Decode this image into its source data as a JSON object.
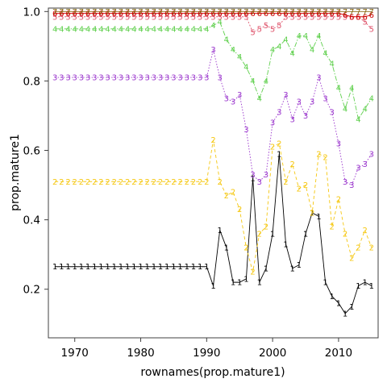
{
  "chart_data": {
    "type": "line",
    "title": "",
    "xlabel": "rownames(prop.mature1)",
    "ylabel": "prop.mature1",
    "xlim": [
      1966,
      2016
    ],
    "ylim": [
      0.06,
      1.01
    ],
    "xticks": [
      1970,
      1980,
      1990,
      2000,
      2010
    ],
    "yticks": [
      0.2,
      0.4,
      0.6,
      0.8,
      1.0
    ],
    "ytick_labels": [
      "0.2",
      "0.4",
      "0.6",
      "0.8",
      "1.0"
    ],
    "grid": false,
    "legend": "none",
    "x": [
      1967,
      1968,
      1969,
      1970,
      1971,
      1972,
      1973,
      1974,
      1975,
      1976,
      1977,
      1978,
      1979,
      1980,
      1981,
      1982,
      1983,
      1984,
      1985,
      1986,
      1987,
      1988,
      1989,
      1990,
      1991,
      1992,
      1993,
      1994,
      1995,
      1996,
      1997,
      1998,
      1999,
      2000,
      2001,
      2002,
      2003,
      2004,
      2005,
      2006,
      2007,
      2008,
      2009,
      2010,
      2011,
      2012,
      2013,
      2014,
      2015
    ],
    "series": [
      {
        "marker": "1",
        "color": "#000000",
        "dash": "",
        "values": [
          0.265,
          0.265,
          0.265,
          0.265,
          0.265,
          0.265,
          0.265,
          0.265,
          0.265,
          0.265,
          0.265,
          0.265,
          0.265,
          0.265,
          0.265,
          0.265,
          0.265,
          0.265,
          0.265,
          0.265,
          0.265,
          0.265,
          0.265,
          0.265,
          0.21,
          0.37,
          0.32,
          0.22,
          0.22,
          0.23,
          0.52,
          0.22,
          0.26,
          0.36,
          0.59,
          0.33,
          0.26,
          0.27,
          0.36,
          0.42,
          0.41,
          0.22,
          0.18,
          0.16,
          0.13,
          0.15,
          0.21,
          0.22,
          0.21
        ]
      },
      {
        "marker": "2",
        "color": "#f5c710",
        "dash": "4,3",
        "values": [
          0.51,
          0.51,
          0.51,
          0.51,
          0.51,
          0.51,
          0.51,
          0.51,
          0.51,
          0.51,
          0.51,
          0.51,
          0.51,
          0.51,
          0.51,
          0.51,
          0.51,
          0.51,
          0.51,
          0.51,
          0.51,
          0.51,
          0.51,
          0.51,
          0.63,
          0.51,
          0.47,
          0.48,
          0.43,
          0.32,
          0.25,
          0.36,
          0.38,
          0.61,
          0.62,
          0.51,
          0.56,
          0.49,
          0.5,
          0.42,
          0.59,
          0.58,
          0.38,
          0.46,
          0.36,
          0.29,
          0.32,
          0.37,
          0.32
        ]
      },
      {
        "marker": "3",
        "color": "#9933cc",
        "dash": "1.5,2",
        "values": [
          0.81,
          0.81,
          0.81,
          0.81,
          0.81,
          0.81,
          0.81,
          0.81,
          0.81,
          0.81,
          0.81,
          0.81,
          0.81,
          0.81,
          0.81,
          0.81,
          0.81,
          0.81,
          0.81,
          0.81,
          0.81,
          0.81,
          0.81,
          0.81,
          0.89,
          0.81,
          0.75,
          0.74,
          0.76,
          0.66,
          0.53,
          0.51,
          0.53,
          0.68,
          0.71,
          0.76,
          0.69,
          0.74,
          0.7,
          0.74,
          0.81,
          0.75,
          0.71,
          0.62,
          0.51,
          0.5,
          0.55,
          0.56,
          0.59
        ]
      },
      {
        "marker": "4",
        "color": "#61d04f",
        "dash": "6,2,1.5,2",
        "values": [
          0.95,
          0.95,
          0.95,
          0.95,
          0.95,
          0.95,
          0.95,
          0.95,
          0.95,
          0.95,
          0.95,
          0.95,
          0.95,
          0.95,
          0.95,
          0.95,
          0.95,
          0.95,
          0.95,
          0.95,
          0.95,
          0.95,
          0.95,
          0.95,
          0.96,
          0.97,
          0.92,
          0.89,
          0.87,
          0.84,
          0.8,
          0.75,
          0.8,
          0.89,
          0.9,
          0.92,
          0.88,
          0.93,
          0.93,
          0.89,
          0.93,
          0.88,
          0.85,
          0.78,
          0.72,
          0.78,
          0.69,
          0.72,
          0.75
        ]
      },
      {
        "marker": "5",
        "color": "#df536b",
        "dash": "2,2",
        "values": [
          0.985,
          0.985,
          0.985,
          0.985,
          0.985,
          0.985,
          0.985,
          0.985,
          0.985,
          0.985,
          0.985,
          0.985,
          0.985,
          0.985,
          0.985,
          0.985,
          0.985,
          0.985,
          0.985,
          0.985,
          0.985,
          0.985,
          0.985,
          0.985,
          0.985,
          0.985,
          0.985,
          0.985,
          0.985,
          0.985,
          0.94,
          0.95,
          0.96,
          0.95,
          0.96,
          0.985,
          0.985,
          0.985,
          0.985,
          0.985,
          0.985,
          0.985,
          0.985,
          0.985,
          0.985,
          0.985,
          0.985,
          0.97,
          0.95
        ]
      },
      {
        "marker": "6",
        "color": "#cd0000",
        "dash": "",
        "values": [
          0.995,
          0.995,
          0.995,
          0.995,
          0.995,
          0.995,
          0.995,
          0.995,
          0.995,
          0.995,
          0.995,
          0.995,
          0.995,
          0.995,
          0.995,
          0.995,
          0.995,
          0.995,
          0.995,
          0.995,
          0.995,
          0.995,
          0.995,
          0.995,
          0.995,
          0.995,
          0.995,
          0.995,
          0.995,
          0.995,
          0.995,
          0.995,
          0.995,
          0.995,
          0.995,
          0.995,
          0.995,
          0.995,
          0.995,
          0.995,
          0.995,
          0.995,
          0.995,
          0.995,
          0.99,
          0.985,
          0.985,
          0.985,
          0.99
        ]
      },
      {
        "marker": "7",
        "color": "#8b6914",
        "dash": "",
        "values": [
          1.0,
          1.0,
          1.0,
          1.0,
          1.0,
          1.0,
          1.0,
          1.0,
          1.0,
          1.0,
          1.0,
          1.0,
          1.0,
          1.0,
          1.0,
          1.0,
          1.0,
          1.0,
          1.0,
          1.0,
          1.0,
          1.0,
          1.0,
          1.0,
          1.0,
          1.0,
          1.0,
          1.0,
          1.0,
          1.0,
          1.0,
          1.0,
          1.0,
          1.0,
          1.0,
          1.0,
          1.0,
          1.0,
          1.0,
          1.0,
          1.0,
          1.0,
          1.0,
          1.0,
          1.0,
          1.0,
          1.0,
          1.0,
          1.0
        ]
      }
    ]
  }
}
